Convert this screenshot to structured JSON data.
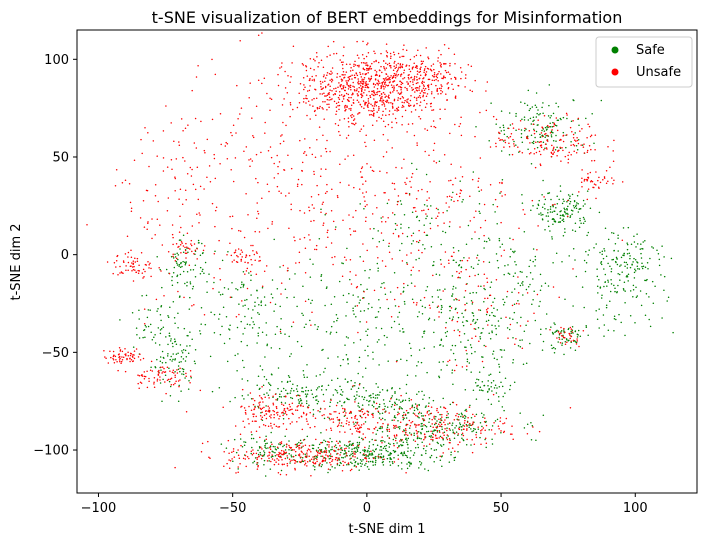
{
  "chart_data": {
    "type": "scatter",
    "title": "t-SNE visualization of BERT embeddings for Misinformation",
    "xlabel": "t-SNE dim 1",
    "ylabel": "t-SNE dim 2",
    "xlim": [
      -108,
      123
    ],
    "ylim": [
      -122,
      115
    ],
    "xticks": [
      -100,
      -50,
      0,
      50,
      100
    ],
    "yticks": [
      -100,
      -50,
      0,
      50,
      100
    ],
    "grid": false,
    "legend_position": "top-right",
    "colors": {
      "Safe": "#008000",
      "Unsafe": "#ff0000"
    },
    "series": [
      {
        "name": "Safe",
        "color": "#008000",
        "clusters": [
          {
            "cx": 0,
            "cy": -102,
            "sx": 14,
            "sy": 4,
            "n": 330
          },
          {
            "cx": 25,
            "cy": -88,
            "sx": 14,
            "sy": 6,
            "n": 230
          },
          {
            "cx": -25,
            "cy": -72,
            "sx": 14,
            "sy": 5,
            "n": 160
          },
          {
            "cx": -35,
            "cy": -100,
            "sx": 8,
            "sy": 4,
            "n": 90
          },
          {
            "cx": 8,
            "cy": -75,
            "sx": 10,
            "sy": 5,
            "n": 100
          },
          {
            "cx": 65,
            "cy": 65,
            "sx": 9,
            "sy": 8,
            "n": 150
          },
          {
            "cx": 73,
            "cy": 22,
            "sx": 5,
            "sy": 5,
            "n": 130
          },
          {
            "cx": -68,
            "cy": -5,
            "sx": 4,
            "sy": 6,
            "n": 70
          },
          {
            "cx": -72,
            "cy": -55,
            "sx": 5,
            "sy": 10,
            "n": 90
          },
          {
            "cx": 74,
            "cy": -42,
            "sx": 4,
            "sy": 4,
            "n": 60
          },
          {
            "cx": 95,
            "cy": -15,
            "sx": 8,
            "sy": 12,
            "n": 120
          },
          {
            "cx": 100,
            "cy": 0,
            "sx": 6,
            "sy": 6,
            "n": 60
          },
          {
            "cx": 40,
            "cy": -40,
            "sx": 14,
            "sy": 14,
            "n": 180
          },
          {
            "cx": -10,
            "cy": -30,
            "sx": 22,
            "sy": 16,
            "n": 200
          },
          {
            "cx": -50,
            "cy": -30,
            "sx": 10,
            "sy": 14,
            "n": 90
          },
          {
            "cx": 60,
            "cy": -10,
            "sx": 16,
            "sy": 16,
            "n": 130
          },
          {
            "cx": 20,
            "cy": 15,
            "sx": 16,
            "sy": 14,
            "n": 90
          },
          {
            "cx": -80,
            "cy": -35,
            "sx": 5,
            "sy": 8,
            "n": 40
          },
          {
            "cx": 45,
            "cy": -68,
            "sx": 5,
            "sy": 3,
            "n": 40
          }
        ]
      },
      {
        "name": "Unsafe",
        "color": "#ff0000",
        "clusters": [
          {
            "cx": 2,
            "cy": 86,
            "sx": 14,
            "sy": 9,
            "n": 800
          },
          {
            "cx": 22,
            "cy": 90,
            "sx": 8,
            "sy": 6,
            "n": 120
          },
          {
            "cx": -25,
            "cy": -103,
            "sx": 14,
            "sy": 4,
            "n": 260
          },
          {
            "cx": -35,
            "cy": -80,
            "sx": 8,
            "sy": 5,
            "n": 150
          },
          {
            "cx": 25,
            "cy": -88,
            "sx": 14,
            "sy": 6,
            "n": 230
          },
          {
            "cx": -8,
            "cy": -85,
            "sx": 8,
            "sy": 5,
            "n": 100
          },
          {
            "cx": 68,
            "cy": 58,
            "sx": 10,
            "sy": 6,
            "n": 150
          },
          {
            "cx": 85,
            "cy": 38,
            "sx": 4,
            "sy": 3,
            "n": 40
          },
          {
            "cx": -90,
            "cy": -52,
            "sx": 4,
            "sy": 2,
            "n": 60
          },
          {
            "cx": -78,
            "cy": -62,
            "sx": 5,
            "sy": 3,
            "n": 70
          },
          {
            "cx": -87,
            "cy": -6,
            "sx": 4,
            "sy": 4,
            "n": 60
          },
          {
            "cx": -68,
            "cy": 4,
            "sx": 3,
            "sy": 3,
            "n": 30
          },
          {
            "cx": -45,
            "cy": -3,
            "sx": 3,
            "sy": 4,
            "n": 40
          },
          {
            "cx": -30,
            "cy": 40,
            "sx": 26,
            "sy": 28,
            "n": 240
          },
          {
            "cx": 25,
            "cy": 35,
            "sx": 22,
            "sy": 16,
            "n": 150
          },
          {
            "cx": -75,
            "cy": 30,
            "sx": 14,
            "sy": 22,
            "n": 80
          },
          {
            "cx": 40,
            "cy": -30,
            "sx": 14,
            "sy": 16,
            "n": 80
          },
          {
            "cx": 0,
            "cy": 0,
            "sx": 30,
            "sy": 30,
            "n": 150
          },
          {
            "cx": 75,
            "cy": -42,
            "sx": 3,
            "sy": 3,
            "n": 30
          }
        ]
      }
    ]
  }
}
